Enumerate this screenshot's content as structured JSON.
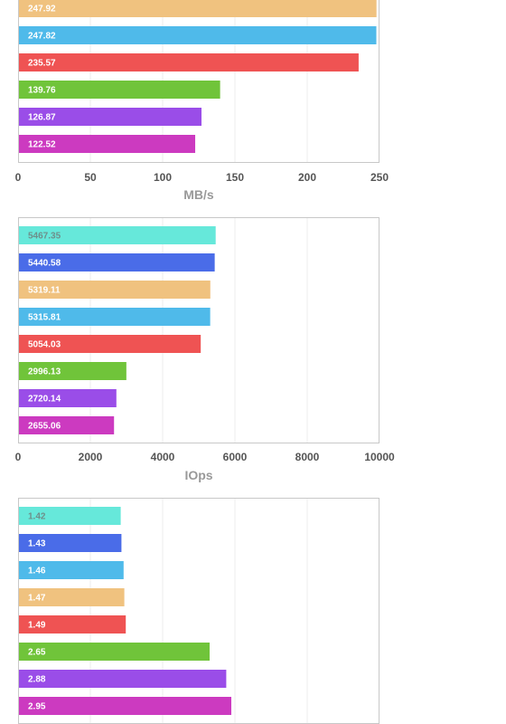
{
  "chart_data": [
    {
      "type": "bar",
      "orientation": "horizontal",
      "xlabel": "MB/s",
      "xlim": [
        0,
        250
      ],
      "ticks": [
        "0",
        "50",
        "100",
        "150",
        "200",
        "250"
      ],
      "grid": true,
      "bars": [
        {
          "label": "247.92",
          "value": 247.92,
          "color": "#f0c27f"
        },
        {
          "label": "247.82",
          "value": 247.82,
          "color": "#4fbaea"
        },
        {
          "label": "235.57",
          "value": 235.57,
          "color": "#ef5353"
        },
        {
          "label": "139.76",
          "value": 139.76,
          "color": "#70c43a"
        },
        {
          "label": "126.87",
          "value": 126.87,
          "color": "#9a4de8"
        },
        {
          "label": "122.52",
          "value": 122.52,
          "color": "#cc3ac0"
        }
      ]
    },
    {
      "type": "bar",
      "orientation": "horizontal",
      "xlabel": "IOps",
      "xlim": [
        0,
        10000
      ],
      "ticks": [
        "0",
        "2000",
        "4000",
        "6000",
        "8000",
        "10000"
      ],
      "grid": true,
      "bars": [
        {
          "label": "5467.35",
          "value": 5467.35,
          "color": "#66e8da"
        },
        {
          "label": "5440.58",
          "value": 5440.58,
          "color": "#4a6ce8"
        },
        {
          "label": "5319.11",
          "value": 5319.11,
          "color": "#f0c27f"
        },
        {
          "label": "5315.81",
          "value": 5315.81,
          "color": "#4fbaea"
        },
        {
          "label": "5054.03",
          "value": 5054.03,
          "color": "#ef5353"
        },
        {
          "label": "2996.13",
          "value": 2996.13,
          "color": "#70c43a"
        },
        {
          "label": "2720.14",
          "value": 2720.14,
          "color": "#9a4de8"
        },
        {
          "label": "2655.06",
          "value": 2655.06,
          "color": "#cc3ac0"
        }
      ]
    },
    {
      "type": "bar",
      "orientation": "horizontal",
      "xlabel": "",
      "xlim": [
        0,
        5
      ],
      "ticks": [],
      "grid": true,
      "bars": [
        {
          "label": "1.42",
          "value": 1.42,
          "color": "#66e8da"
        },
        {
          "label": "1.43",
          "value": 1.43,
          "color": "#4a6ce8"
        },
        {
          "label": "1.46",
          "value": 1.46,
          "color": "#4fbaea"
        },
        {
          "label": "1.47",
          "value": 1.47,
          "color": "#f0c27f"
        },
        {
          "label": "1.49",
          "value": 1.49,
          "color": "#ef5353"
        },
        {
          "label": "2.65",
          "value": 2.65,
          "color": "#70c43a"
        },
        {
          "label": "2.88",
          "value": 2.88,
          "color": "#9a4de8"
        },
        {
          "label": "2.95",
          "value": 2.95,
          "color": "#cc3ac0"
        }
      ]
    }
  ]
}
